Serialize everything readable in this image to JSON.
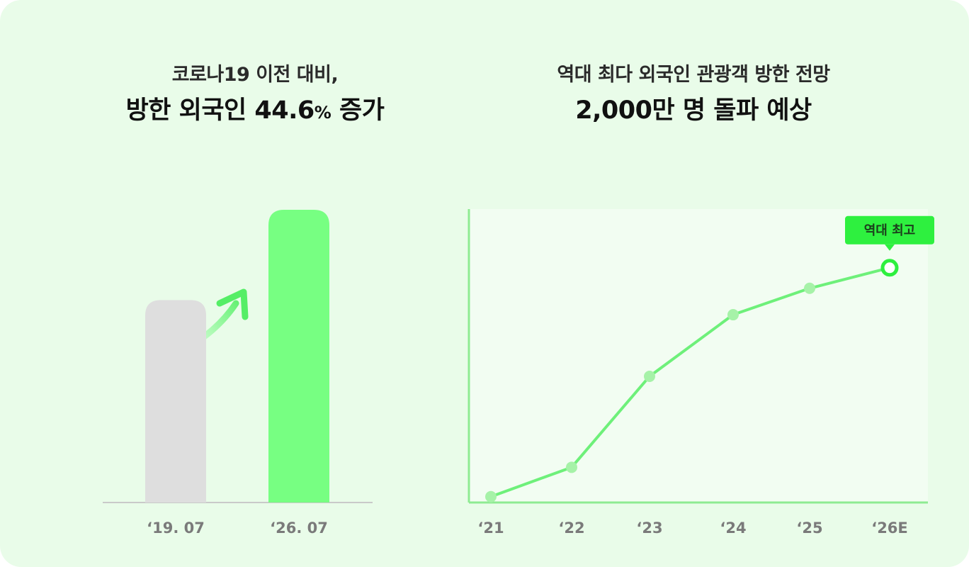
{
  "colors": {
    "background": "#e9fce9",
    "bar_before": "#dedede",
    "bar_after": "#77ff82",
    "line": "#6ef07a",
    "point": "#a6f2a8",
    "highlight": "#2ef03f",
    "plot_area": "#f2fdf2"
  },
  "left_panel": {
    "subtitle": "코로나19 이전 대비,",
    "title_prefix": "방한 외국인 44.6",
    "title_percent": "%",
    "title_suffix": " 증가",
    "arrow_icon": "up-right-arrow-icon"
  },
  "right_panel": {
    "subtitle": "역대 최다 외국인 관광객 방한 전망",
    "title": "2,000만 명 돌파 예상",
    "badge": "역대 최고"
  },
  "chart_data": [
    {
      "type": "bar",
      "categories": [
        "‘19. 07",
        "‘26. 07"
      ],
      "values": [
        100,
        144.6
      ],
      "ylim": [
        0,
        144.6
      ],
      "grid": false,
      "legend": "none"
    },
    {
      "type": "line",
      "categories": [
        "‘21",
        "‘22",
        "‘23",
        "‘24",
        "‘25",
        "‘26E"
      ],
      "values": [
        2,
        12,
        43,
        64,
        73,
        80
      ],
      "ylim": [
        0,
        100
      ],
      "highlight_index": 5,
      "grid": false,
      "legend": "none"
    }
  ]
}
